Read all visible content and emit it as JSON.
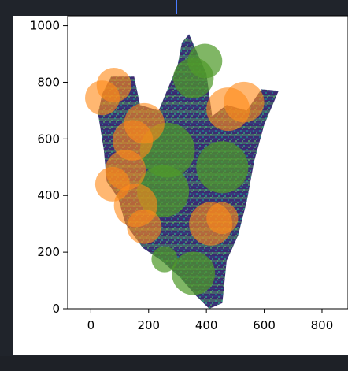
{
  "window": {
    "background": "#20242b",
    "accent": "#4a7cff"
  },
  "chart_data": {
    "type": "image",
    "colormap": "viridis",
    "overlay": "circles",
    "x_axis": {
      "ticks": [
        0,
        200,
        400,
        600,
        800
      ],
      "tick_labels": [
        "0",
        "200",
        "400",
        "600",
        "800"
      ],
      "range": [
        -80,
        890
      ]
    },
    "y_axis": {
      "ticks": [
        0,
        200,
        400,
        600,
        800,
        1000
      ],
      "tick_labels": [
        "0",
        "200",
        "400",
        "600",
        "800",
        "1000"
      ],
      "range": [
        1035,
        0
      ],
      "inverted": true
    },
    "image_extent": {
      "x": [
        0,
        890
      ],
      "y": [
        0,
        985
      ]
    },
    "background_color": "#fde725",
    "circles_green": [
      {
        "x": 355,
        "y": 125,
        "r": 75
      },
      {
        "x": 255,
        "y": 175,
        "r": 45
      },
      {
        "x": 250,
        "y": 415,
        "r": 90
      },
      {
        "x": 455,
        "y": 500,
        "r": 90
      },
      {
        "x": 265,
        "y": 560,
        "r": 95
      },
      {
        "x": 355,
        "y": 815,
        "r": 70
      },
      {
        "x": 395,
        "y": 875,
        "r": 60
      }
    ],
    "circles_orange": [
      {
        "x": 185,
        "y": 290,
        "r": 60
      },
      {
        "x": 155,
        "y": 365,
        "r": 75
      },
      {
        "x": 415,
        "y": 300,
        "r": 75
      },
      {
        "x": 455,
        "y": 320,
        "r": 55
      },
      {
        "x": 75,
        "y": 440,
        "r": 60
      },
      {
        "x": 120,
        "y": 490,
        "r": 70
      },
      {
        "x": 145,
        "y": 595,
        "r": 70
      },
      {
        "x": 185,
        "y": 655,
        "r": 70
      },
      {
        "x": 475,
        "y": 705,
        "r": 75
      },
      {
        "x": 530,
        "y": 730,
        "r": 70
      },
      {
        "x": 40,
        "y": 745,
        "r": 60
      },
      {
        "x": 80,
        "y": 790,
        "r": 60
      }
    ]
  }
}
